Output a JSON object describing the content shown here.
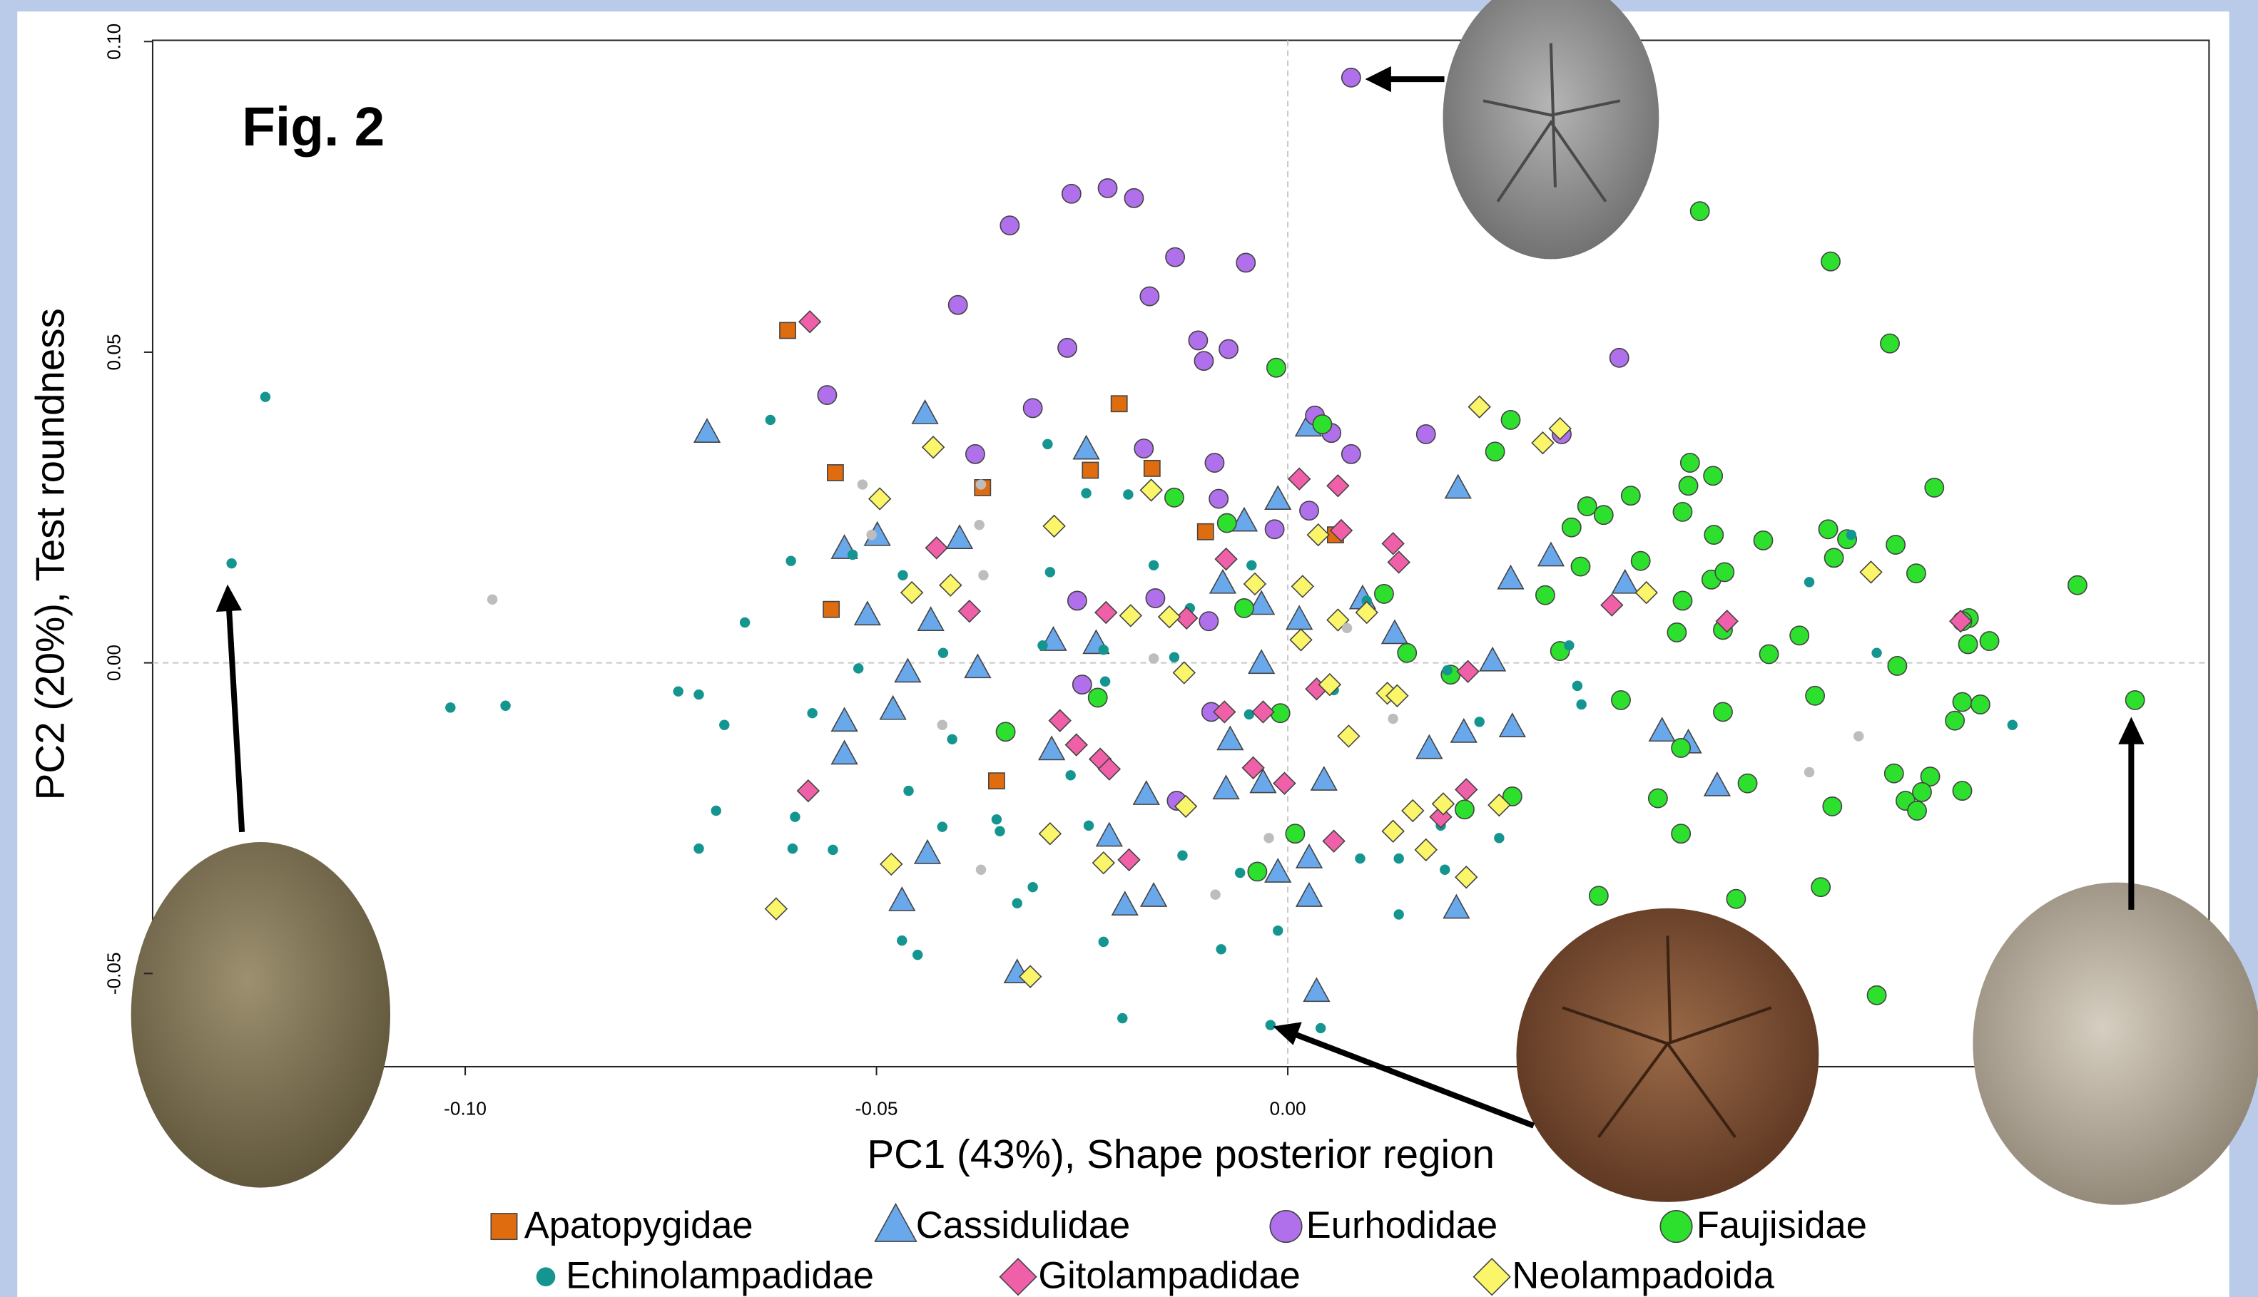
{
  "chart_data": {
    "type": "scatter",
    "annotation": "Fig. 2",
    "xlabel": "PC1 (43%), Shape posterior region",
    "ylabel": "PC2 (20%), Test roundness",
    "xlim": [
      -0.138,
      0.112
    ],
    "ylim": [
      -0.065,
      0.1002
    ],
    "xticks": [
      {
        "value": -0.1,
        "label": "-0.10"
      },
      {
        "value": -0.05,
        "label": "-0.05"
      },
      {
        "value": 0,
        "label": "0.00"
      }
    ],
    "yticks": [
      {
        "value": -0.05,
        "label": "-0.05"
      },
      {
        "value": 0,
        "label": "0.00"
      },
      {
        "value": 0.05,
        "label": "0.05"
      },
      {
        "value": 0.1,
        "label": "0.10"
      }
    ],
    "zero_lines": true,
    "series": [
      {
        "name": "Apatopygidae",
        "color": "#e06c10",
        "marker": "square",
        "legend_row": 0,
        "x": [
          -0.0608,
          -0.0205,
          -0.055,
          -0.024,
          -0.0371,
          -0.0165,
          -0.01,
          0.0058,
          -0.0555,
          -0.0354
        ],
        "y": [
          0.0535,
          0.0417,
          0.0306,
          0.031,
          0.0282,
          0.0313,
          0.0211,
          0.0206,
          0.0086,
          -0.019
        ]
      },
      {
        "name": "Cassidulidae",
        "color": "#6aa8ec",
        "marker": "triangle",
        "legend_row": 0,
        "x": [
          -0.0706,
          -0.0441,
          -0.0245,
          -0.0539,
          -0.0499,
          -0.0399,
          -0.0511,
          -0.0434,
          -0.0285,
          -0.0462,
          -0.0377,
          -0.0539,
          -0.048,
          -0.0539,
          -0.0287,
          -0.0233,
          -0.0172,
          -0.0217,
          -0.0438,
          -0.0469,
          -0.0198,
          -0.0163,
          -0.0329,
          -0.0053,
          -0.0012,
          -0.0079,
          -0.0032,
          0.0014,
          -0.0032,
          -0.007,
          -0.003,
          -0.0075,
          0.0044,
          0.0026,
          -0.0012,
          0.0026,
          0.0035,
          0.0091,
          0.013,
          0.0172,
          0.0214,
          0.0205,
          0.0273,
          0.0249,
          0.032,
          0.0271,
          0.041,
          0.0455,
          0.0487,
          0.0522,
          0.0207,
          0.0025
        ],
        "y": [
          0.037,
          0.04,
          0.0343,
          0.0183,
          0.0204,
          0.0199,
          0.0076,
          0.0067,
          0.0035,
          -0.0016,
          -0.0009,
          -0.0095,
          -0.0076,
          -0.0148,
          -0.0141,
          0.003,
          -0.0213,
          -0.028,
          -0.0308,
          -0.0384,
          -0.0391,
          -0.0377,
          -0.05,
          0.0227,
          0.0262,
          0.0127,
          0.0093,
          0.0069,
          -0.0002,
          -0.0125,
          -0.0194,
          -0.0204,
          -0.019,
          -0.0315,
          -0.0338,
          -0.0377,
          -0.053,
          0.0102,
          0.0046,
          -0.0139,
          -0.0113,
          -0.0396,
          -0.0104,
          0.0002,
          0.0171,
          0.0134,
          0.0127,
          -0.0111,
          -0.013,
          -0.0199,
          0.028,
          0.038
        ]
      },
      {
        "name": "Eurhodidae",
        "color": "#b070ec",
        "marker": "circle",
        "legend_row": 0,
        "x": [
          0.0077,
          -0.0263,
          -0.0219,
          -0.0187,
          -0.0338,
          -0.0137,
          -0.0051,
          -0.0401,
          -0.0168,
          -0.0268,
          -0.0109,
          -0.0072,
          -0.0102,
          -0.056,
          -0.031,
          -0.0175,
          -0.038,
          -0.0089,
          -0.0084,
          0.0033,
          0.0053,
          0.0077,
          0.0168,
          0.0333,
          0.0403,
          0.0026,
          -0.0016,
          -0.0256,
          -0.0161,
          -0.0096,
          -0.025,
          -0.0093,
          -0.0135
        ],
        "y": [
          0.0942,
          0.0755,
          0.0764,
          0.0748,
          0.0704,
          0.0653,
          0.0644,
          0.0576,
          0.059,
          0.0507,
          0.0519,
          0.0505,
          0.0486,
          0.0431,
          0.041,
          0.0345,
          0.0336,
          0.0322,
          0.0264,
          0.0398,
          0.037,
          0.0336,
          0.0368,
          0.0368,
          0.0491,
          0.0245,
          0.0215,
          0.01,
          0.0104,
          0.0067,
          -0.0035,
          -0.0079,
          -0.0222
        ]
      },
      {
        "name": "Faujisidae",
        "color": "#2ee02e",
        "marker": "circle",
        "legend_row": 0,
        "x": [
          0.0501,
          0.066,
          0.0732,
          -0.0014,
          0.0042,
          0.0271,
          0.0252,
          0.0489,
          0.0517,
          0.0487,
          0.0786,
          0.0364,
          0.0417,
          0.0384,
          0.048,
          0.0518,
          0.0578,
          0.0657,
          0.068,
          0.0739,
          0.0345,
          0.0356,
          0.0429,
          0.0515,
          0.0531,
          0.0313,
          0.048,
          0.096,
          0.0828,
          0.0764,
          0.082,
          0.0853,
          0.0827,
          0.0622,
          0.0529,
          0.0473,
          0.0585,
          0.0331,
          0.0741,
          0.0664,
          0.0117,
          0.0145,
          -0.0074,
          -0.0053,
          0.0198,
          0.103,
          0.082,
          0.0842,
          0.0811,
          0.0641,
          0.0405,
          0.0529,
          0.0478,
          0.045,
          0.0559,
          0.0662,
          0.0737,
          0.0781,
          0.0771,
          0.0751,
          0.082,
          0.0765,
          0.0478,
          0.0378,
          0.0545,
          0.0648,
          0.0716,
          0.0273,
          0.0215,
          -0.0009,
          -0.0343,
          0.0009,
          -0.0037,
          -0.0231,
          -0.0138
        ],
        "y": [
          0.0727,
          0.0646,
          0.0514,
          0.0475,
          0.0384,
          0.0391,
          0.034,
          0.0322,
          0.0301,
          0.0285,
          0.0282,
          0.0252,
          0.0269,
          0.0238,
          0.0243,
          0.0206,
          0.0197,
          0.0215,
          0.0199,
          0.019,
          0.0218,
          0.0155,
          0.0164,
          0.0134,
          0.0146,
          0.0109,
          0.01,
          0.0125,
          0.0072,
          0.0144,
          0.0067,
          0.0035,
          0.003,
          0.0044,
          0.0053,
          0.0049,
          0.0014,
          0.0019,
          -0.0005,
          0.0169,
          0.0111,
          0.0016,
          0.0225,
          0.0088,
          -0.0019,
          -0.006,
          -0.0063,
          -0.0067,
          -0.0093,
          -0.0053,
          -0.006,
          -0.0079,
          -0.0137,
          -0.0218,
          -0.0194,
          -0.0231,
          -0.0178,
          -0.0183,
          -0.0208,
          -0.0222,
          -0.0206,
          -0.0238,
          -0.0275,
          -0.0375,
          -0.038,
          -0.0361,
          -0.0535,
          -0.0215,
          -0.0236,
          -0.0081,
          -0.0111,
          -0.0275,
          -0.0336,
          -0.0056,
          0.0266
        ]
      },
      {
        "name": "Echinolampadidae",
        "color": "#15958f",
        "marker": "dot",
        "legend_row": 1,
        "x": [
          -0.1243,
          -0.1284,
          -0.1018,
          -0.0951,
          -0.0741,
          -0.0716,
          -0.0685,
          -0.0695,
          -0.0716,
          -0.0629,
          -0.066,
          -0.0604,
          -0.0599,
          -0.0602,
          -0.0578,
          -0.0553,
          -0.0522,
          -0.0529,
          -0.0468,
          -0.0461,
          -0.045,
          -0.0469,
          -0.042,
          -0.0419,
          -0.0408,
          -0.0354,
          -0.035,
          -0.0329,
          -0.031,
          -0.0292,
          -0.0298,
          -0.0289,
          -0.0245,
          -0.0194,
          -0.0224,
          -0.0222,
          -0.0224,
          -0.0201,
          -0.0163,
          -0.0138,
          -0.0128,
          -0.0081,
          -0.0058,
          -0.0047,
          -0.0012,
          -0.0021,
          0.004,
          0.0088,
          0.0135,
          0.0135,
          0.0191,
          0.0194,
          0.0352,
          0.0233,
          0.0357,
          0.0634,
          0.0685,
          0.0716,
          0.0881,
          0.0186,
          0.0257,
          0.0056,
          0.0096,
          0.0342,
          -0.0044,
          -0.0119,
          -0.0264,
          -0.0242
        ],
        "y": [
          0.0428,
          0.016,
          -0.0072,
          -0.0069,
          -0.0046,
          -0.0051,
          -0.01,
          -0.0238,
          -0.0299,
          0.0391,
          0.0065,
          0.0164,
          -0.0248,
          -0.0299,
          -0.0081,
          -0.0301,
          -0.0009,
          0.0174,
          0.0141,
          -0.0206,
          -0.047,
          -0.0447,
          -0.0264,
          0.0016,
          -0.0123,
          -0.0252,
          -0.0271,
          -0.0387,
          -0.0361,
          0.0352,
          0.0028,
          0.0146,
          0.0273,
          0.0271,
          0.0021,
          -0.003,
          -0.0449,
          -0.0572,
          0.0157,
          0.0009,
          -0.031,
          -0.0461,
          -0.0338,
          -0.0083,
          -0.0431,
          -0.0583,
          -0.0588,
          -0.0315,
          -0.0405,
          -0.0315,
          -0.0333,
          -0.0012,
          -0.0037,
          -0.0095,
          -0.0067,
          0.013,
          0.0206,
          0.0016,
          -0.01,
          -0.0262,
          -0.0282,
          -0.0044,
          0.01,
          0.0028,
          0.0157,
          0.0088,
          -0.0181,
          -0.0262
        ]
      },
      {
        "name": "Gitolampadidae",
        "color": "#f060a8",
        "marker": "diamond",
        "legend_row": 1,
        "x": [
          -0.0581,
          -0.0427,
          -0.0387,
          -0.0221,
          -0.0277,
          -0.0257,
          -0.0228,
          -0.0217,
          -0.0193,
          -0.0583,
          -0.0123,
          -0.0075,
          -0.0077,
          -0.0042,
          0.0014,
          0.0061,
          0.0065,
          0.0128,
          0.0135,
          -0.003,
          -0.0004,
          0.0056,
          0.0186,
          0.0217,
          0.0219,
          0.0394,
          0.0534,
          0.0818,
          0.0035
        ],
        "y": [
          0.0549,
          0.0185,
          0.0083,
          0.0081,
          -0.0093,
          -0.0132,
          -0.0155,
          -0.0171,
          -0.0317,
          -0.0206,
          0.0072,
          0.0167,
          -0.0079,
          -0.0169,
          0.0296,
          0.0285,
          0.0213,
          0.0192,
          0.0162,
          -0.0079,
          -0.0194,
          -0.0287,
          -0.0248,
          -0.0204,
          -0.0014,
          0.0093,
          0.0067,
          0.0067,
          -0.0042
        ]
      },
      {
        "name": "Neolampadoida",
        "color": "#fbf56a",
        "marker": "diamond",
        "legend_row": 1,
        "x": [
          -0.0431,
          -0.0496,
          -0.0284,
          -0.0457,
          -0.041,
          -0.0166,
          -0.0191,
          -0.0144,
          -0.0126,
          -0.004,
          0.0018,
          0.0037,
          0.0096,
          0.0016,
          0.0061,
          0.0051,
          0.0074,
          0.0121,
          0.0133,
          0.0152,
          0.0189,
          0.0233,
          0.031,
          0.0331,
          0.0436,
          0.0709,
          0.0257,
          0.0217,
          0.0168,
          0.0128,
          -0.0289,
          -0.0224,
          -0.0482,
          -0.0622,
          -0.0313,
          -0.0124
        ],
        "y": [
          0.0347,
          0.0264,
          0.022,
          0.0113,
          0.0125,
          0.0278,
          0.0076,
          0.0074,
          -0.0016,
          0.0127,
          0.0123,
          0.0206,
          0.0081,
          0.0037,
          0.0069,
          -0.0035,
          -0.0118,
          -0.0049,
          -0.0053,
          -0.0238,
          -0.0227,
          0.0412,
          0.0354,
          0.0377,
          0.0113,
          0.0146,
          -0.0229,
          -0.0345,
          -0.0301,
          -0.0271,
          -0.0275,
          -0.0322,
          -0.0324,
          -0.0396,
          -0.0505,
          -0.0231
        ]
      },
      {
        "color": "#bdbdbd",
        "marker": "dot",
        "x": [
          -0.0967,
          -0.0517,
          -0.0506,
          -0.0373,
          -0.0375,
          -0.037,
          -0.042,
          -0.0373,
          -0.0088,
          -0.0023,
          -0.0163,
          0.0128,
          0.0634,
          0.0694,
          0.0072
        ],
        "y": [
          0.0102,
          0.0287,
          0.0206,
          0.0287,
          0.0222,
          0.0141,
          -0.01,
          -0.0333,
          -0.0373,
          -0.0282,
          0.0007,
          -0.009,
          -0.0176,
          -0.0118,
          0.0056
        ]
      }
    ]
  }
}
